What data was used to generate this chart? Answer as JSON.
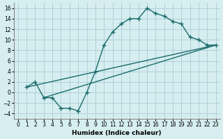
{
  "xlabel": "Humidex (Indice chaleur)",
  "bg_color": "#d6eef0",
  "grid_color": "#b0d0d8",
  "line_color": "#1a6b6b",
  "xlim": [
    -0.5,
    23.5
  ],
  "ylim": [
    -5,
    17
  ],
  "xticks": [
    0,
    1,
    2,
    3,
    4,
    5,
    6,
    7,
    8,
    9,
    10,
    11,
    12,
    13,
    14,
    15,
    16,
    17,
    18,
    19,
    20,
    21,
    22,
    23
  ],
  "yticks": [
    -4,
    -2,
    0,
    2,
    4,
    6,
    8,
    10,
    12,
    14,
    16
  ],
  "line1_x": [
    1,
    2,
    3,
    4,
    5,
    6,
    7,
    8,
    9,
    10,
    11,
    12,
    13,
    14,
    15,
    16,
    17,
    18,
    19,
    20,
    21,
    22,
    23
  ],
  "line1_y": [
    1,
    2,
    -1,
    -1,
    -3,
    -3,
    -3.5,
    0,
    4,
    9,
    11.5,
    13,
    14,
    14,
    16,
    15,
    14.5,
    13.5,
    13,
    10.5,
    10,
    9,
    9
  ],
  "line2_x": [
    1,
    23
  ],
  "line2_y": [
    1,
    9
  ],
  "line3_x": [
    3,
    23
  ],
  "line3_y": [
    -1,
    9
  ]
}
